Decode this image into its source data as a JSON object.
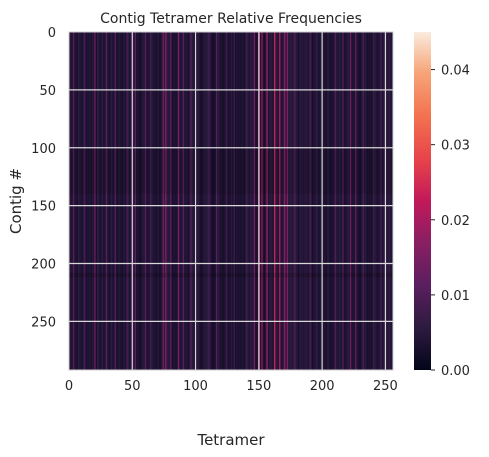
{
  "chart_data": {
    "type": "heatmap",
    "title": "Contig Tetramer Relative Frequencies",
    "xlabel": "Tetramer",
    "ylabel": "Contig #",
    "x_range": [
      0,
      256
    ],
    "y_range": [
      0,
      292
    ],
    "x_ticks": [
      0,
      50,
      100,
      150,
      200,
      250
    ],
    "y_ticks": [
      0,
      50,
      100,
      150,
      200,
      250
    ],
    "colorbar": {
      "range": [
        0.0,
        0.045
      ],
      "ticks": [
        "0.00",
        "0.01",
        "0.02",
        "0.03",
        "0.04"
      ],
      "tick_values": [
        0.0,
        0.01,
        0.02,
        0.03,
        0.04
      ],
      "colormap": "rocket"
    },
    "grid": true,
    "column_means": {
      "baseline": 0.004,
      "highlights": [
        {
          "x": 3,
          "value": 0.012
        },
        {
          "x": 12,
          "value": 0.01
        },
        {
          "x": 20,
          "value": 0.014
        },
        {
          "x": 29,
          "value": 0.011
        },
        {
          "x": 36,
          "value": 0.012
        },
        {
          "x": 46,
          "value": 0.01
        },
        {
          "x": 50,
          "value": 0.009
        },
        {
          "x": 52,
          "value": 0.012
        },
        {
          "x": 60,
          "value": 0.011
        },
        {
          "x": 64,
          "value": 0.008
        },
        {
          "x": 74,
          "value": 0.014
        },
        {
          "x": 76,
          "value": 0.016
        },
        {
          "x": 80,
          "value": 0.013
        },
        {
          "x": 86,
          "value": 0.015
        },
        {
          "x": 90,
          "value": 0.011
        },
        {
          "x": 96,
          "value": 0.01
        },
        {
          "x": 110,
          "value": 0.009
        },
        {
          "x": 116,
          "value": 0.011
        },
        {
          "x": 124,
          "value": 0.008
        },
        {
          "x": 130,
          "value": 0.009
        },
        {
          "x": 140,
          "value": 0.008
        },
        {
          "x": 146,
          "value": 0.014
        },
        {
          "x": 150,
          "value": 0.022
        },
        {
          "x": 152,
          "value": 0.018
        },
        {
          "x": 156,
          "value": 0.02
        },
        {
          "x": 162,
          "value": 0.024
        },
        {
          "x": 166,
          "value": 0.02
        },
        {
          "x": 170,
          "value": 0.018
        },
        {
          "x": 172,
          "value": 0.016
        },
        {
          "x": 178,
          "value": 0.01
        },
        {
          "x": 190,
          "value": 0.009
        },
        {
          "x": 210,
          "value": 0.01
        },
        {
          "x": 216,
          "value": 0.011
        },
        {
          "x": 222,
          "value": 0.014
        },
        {
          "x": 226,
          "value": 0.012
        },
        {
          "x": 232,
          "value": 0.01
        },
        {
          "x": 240,
          "value": 0.008
        },
        {
          "x": 246,
          "value": 0.01
        },
        {
          "x": 250,
          "value": 0.008
        }
      ]
    },
    "row_bands": [
      {
        "y_start": 100,
        "y_end": 140,
        "factor": 0.9
      },
      {
        "y_start": 208,
        "y_end": 212,
        "factor": 0.85
      }
    ]
  }
}
